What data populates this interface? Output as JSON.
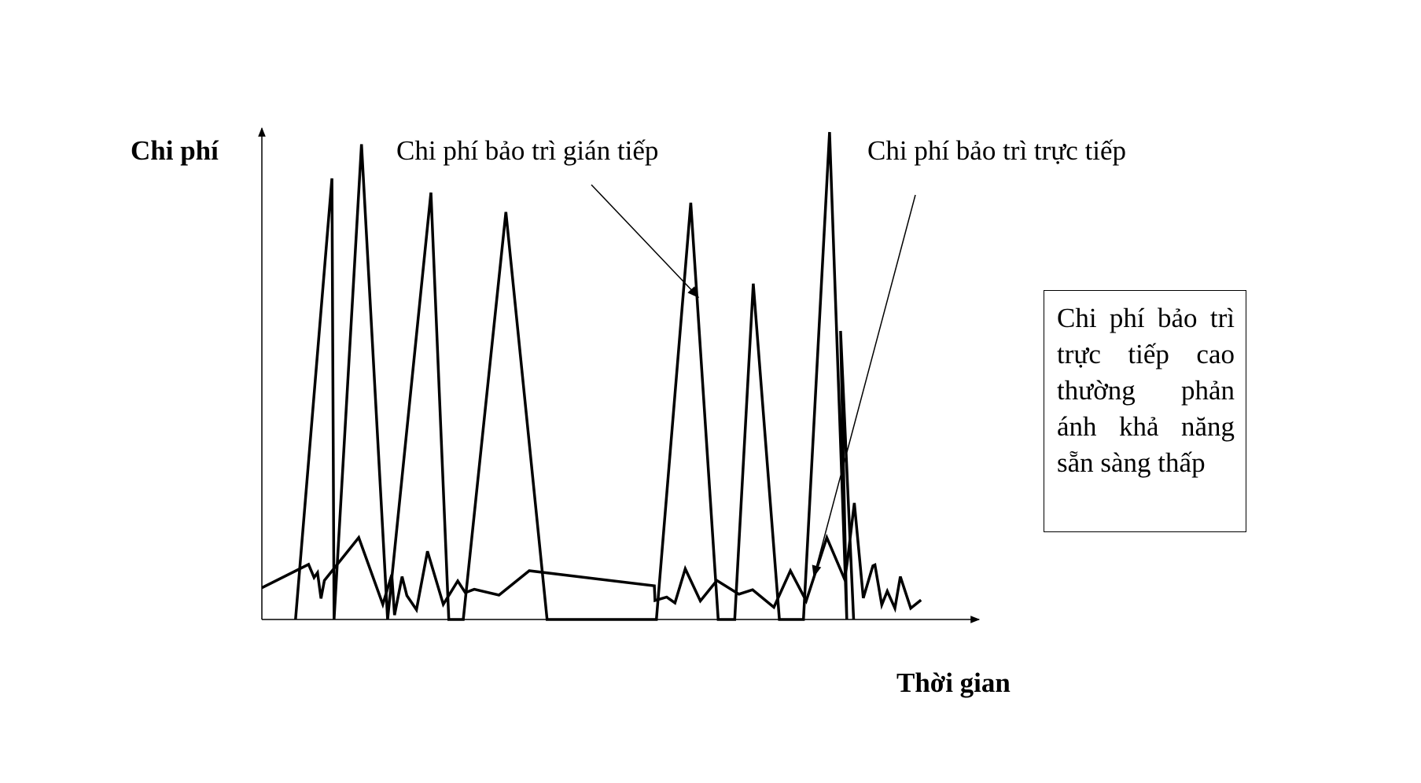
{
  "chart_data": {
    "type": "line",
    "ylabel": "Chi phí",
    "xlabel": "Thời gian",
    "grid": false,
    "axis_ticks": false,
    "xlim": [
      0,
      100
    ],
    "ylim": [
      0,
      100
    ],
    "series": [
      {
        "name": "Chi phí bảo trì gián tiếp",
        "x": [
          4.9,
          10.2,
          10.5,
          14.5,
          18.3,
          24.6,
          27.2,
          29.3,
          35.5,
          41.5,
          57.4,
          62.4,
          66.4,
          68.8,
          71.5,
          75.3,
          78.8,
          82.6,
          85.1,
          84.2,
          86.1
        ],
        "y": [
          0,
          90.5,
          0,
          97.5,
          0,
          87.6,
          0,
          0,
          83.6,
          0,
          0,
          85.5,
          0,
          0,
          68.9,
          0,
          0,
          100,
          0,
          59.2,
          0
        ]
      },
      {
        "name": "Chi phí bảo trì trực tiếp",
        "x": [
          0,
          6.8,
          7.6,
          8.1,
          8.6,
          9.1,
          14.1,
          17.6,
          18.9,
          19.3,
          20.4,
          21.1,
          22.5,
          24.1,
          26.4,
          28.5,
          29.6,
          30.9,
          34.5,
          38.9,
          57.1,
          57.2,
          58.9,
          60.1,
          61.6,
          63.8,
          66.2,
          69.4,
          71.4,
          74.5,
          76.9,
          79.2,
          82.2,
          84.8,
          85.2,
          86.2,
          87.5,
          88.9,
          89.2,
          90.2,
          91.0,
          92.1,
          92.9,
          94.4,
          95.9
        ],
        "y": [
          6.5,
          11.3,
          8.6,
          9.6,
          4.3,
          8.0,
          16.8,
          3.1,
          9.2,
          0.9,
          8.8,
          4.9,
          2.0,
          14.0,
          3.1,
          7.9,
          5.5,
          6.2,
          5.0,
          10.0,
          6.9,
          3.9,
          4.6,
          3.4,
          10.4,
          3.8,
          8.0,
          5.2,
          6.1,
          2.5,
          10.0,
          3.8,
          16.8,
          8.2,
          12.0,
          23.9,
          4.4,
          11.0,
          11.2,
          3.0,
          5.8,
          2.3,
          8.8,
          2.3,
          4.0
        ]
      }
    ],
    "annotations": [
      {
        "label": "Chi phí bảo trì gián tiếp",
        "target": "Chi phí bảo trì gián tiếp"
      },
      {
        "label": "Chi phí bảo trì trực tiếp",
        "target": "Chi phí bảo trì trực tiếp"
      }
    ],
    "note": "Chi phí bảo trì trực tiếp cao thường phản ánh khả năng sẵn sàng thấp"
  }
}
